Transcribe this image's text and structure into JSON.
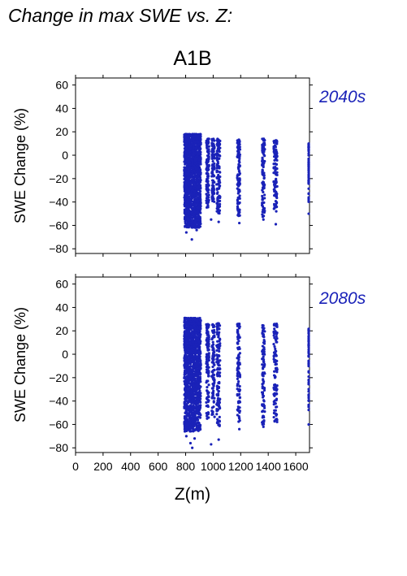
{
  "title": "Change in max SWE vs. Z:",
  "scenario": "A1B",
  "chart_data": {
    "type": "scatter",
    "x_label": "Z(m)",
    "y_label": "SWE Change (%)",
    "xlim": [
      0,
      1700
    ],
    "ylim": [
      -84,
      66
    ],
    "x_ticks": [
      0,
      200,
      400,
      600,
      800,
      1000,
      1200,
      1400,
      1600
    ],
    "x_tick_labels": [
      "0",
      "200",
      "400",
      "600",
      "800",
      "1000",
      "1200",
      "1400",
      "1600"
    ],
    "y_ticks": [
      -80,
      -60,
      -40,
      -20,
      0,
      20,
      40,
      60
    ],
    "y_tick_labels": [
      "−80",
      "−60",
      "−40",
      "−20",
      "0",
      "20",
      "40",
      "60"
    ],
    "grid": false,
    "marker_color": "#1a22b8",
    "panels": [
      {
        "period": "2040s",
        "elevation_bands": [
          {
            "x_min": 790,
            "x_max": 910,
            "y_min": -62,
            "y_max": 18,
            "n": 1400
          },
          {
            "x_min": 950,
            "x_max": 970,
            "y_min": -45,
            "y_max": 14,
            "n": 120
          },
          {
            "x_min": 990,
            "x_max": 1010,
            "y_min": -40,
            "y_max": 14,
            "n": 100
          },
          {
            "x_min": 1025,
            "x_max": 1050,
            "y_min": -50,
            "y_max": 14,
            "n": 120
          },
          {
            "x_min": 1175,
            "x_max": 1195,
            "y_min": -52,
            "y_max": 14,
            "n": 110
          },
          {
            "x_min": 1355,
            "x_max": 1375,
            "y_min": -53,
            "y_max": 14,
            "n": 100
          },
          {
            "x_min": 1440,
            "x_max": 1465,
            "y_min": -48,
            "y_max": 13,
            "n": 110
          },
          {
            "x_min": 1695,
            "x_max": 1705,
            "y_min": -40,
            "y_max": 11,
            "n": 60
          }
        ],
        "outliers": [
          {
            "x": 845,
            "y": -72
          },
          {
            "x": 805,
            "y": -66
          },
          {
            "x": 880,
            "y": -64
          },
          {
            "x": 860,
            "y": -60
          },
          {
            "x": 985,
            "y": -55
          },
          {
            "x": 1040,
            "y": -57
          },
          {
            "x": 1190,
            "y": -58
          },
          {
            "x": 1365,
            "y": -55
          },
          {
            "x": 1455,
            "y": -59
          },
          {
            "x": 1700,
            "y": -50
          }
        ]
      },
      {
        "period": "2080s",
        "elevation_bands": [
          {
            "x_min": 790,
            "x_max": 910,
            "y_min": -66,
            "y_max": 31,
            "n": 1400
          },
          {
            "x_min": 950,
            "x_max": 970,
            "y_min": -55,
            "y_max": 26,
            "n": 120
          },
          {
            "x_min": 990,
            "x_max": 1010,
            "y_min": -55,
            "y_max": 26,
            "n": 100
          },
          {
            "x_min": 1025,
            "x_max": 1050,
            "y_min": -62,
            "y_max": 27,
            "n": 120
          },
          {
            "x_min": 1175,
            "x_max": 1195,
            "y_min": -60,
            "y_max": 26,
            "n": 110
          },
          {
            "x_min": 1355,
            "x_max": 1375,
            "y_min": -60,
            "y_max": 25,
            "n": 100
          },
          {
            "x_min": 1440,
            "x_max": 1465,
            "y_min": -58,
            "y_max": 26,
            "n": 110
          },
          {
            "x_min": 1695,
            "x_max": 1705,
            "y_min": -50,
            "y_max": 22,
            "n": 60
          }
        ],
        "outliers": [
          {
            "x": 848,
            "y": -80
          },
          {
            "x": 835,
            "y": -76
          },
          {
            "x": 865,
            "y": -72
          },
          {
            "x": 805,
            "y": -70
          },
          {
            "x": 985,
            "y": -77
          },
          {
            "x": 1040,
            "y": -73
          },
          {
            "x": 1190,
            "y": -64
          },
          {
            "x": 1365,
            "y": -62
          },
          {
            "x": 1455,
            "y": -56
          },
          {
            "x": 1700,
            "y": -60
          }
        ]
      }
    ]
  }
}
